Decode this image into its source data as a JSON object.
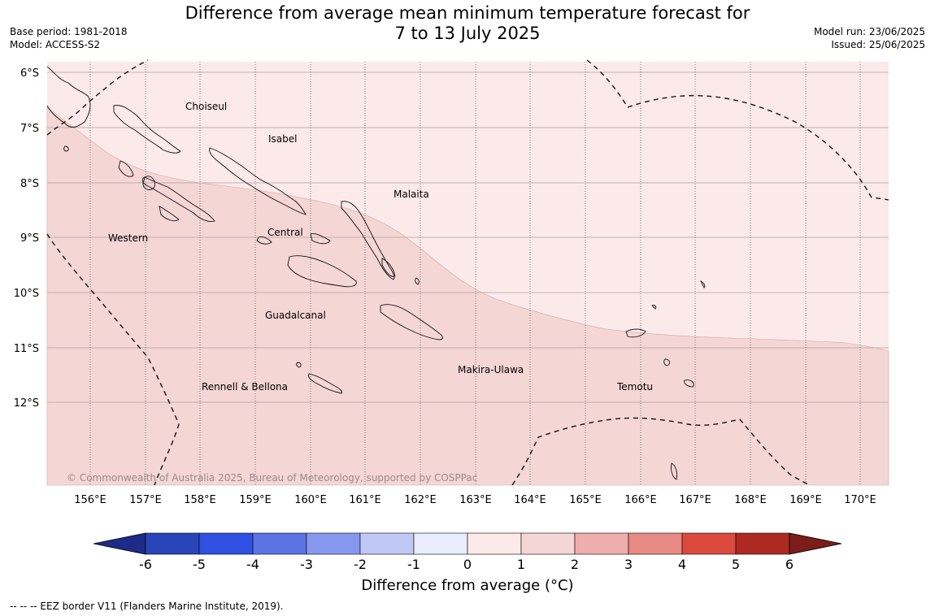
{
  "title": {
    "line1": "Difference from average mean minimum temperature forecast for",
    "line2": "7 to 13 July 2025"
  },
  "meta_left": {
    "base_period": "Base period: 1981-2018",
    "model": "Model: ACCESS-S2"
  },
  "meta_right": {
    "model_run": "Model run: 23/06/2025",
    "issued": "Issued: 25/06/2025"
  },
  "map": {
    "lat_labels": [
      "6°S",
      "7°S",
      "8°S",
      "9°S",
      "10°S",
      "11°S",
      "12°S"
    ],
    "lon_labels": [
      "156°E",
      "157°E",
      "158°E",
      "159°E",
      "160°E",
      "161°E",
      "162°E",
      "163°E",
      "164°E",
      "165°E",
      "166°E",
      "167°E",
      "168°E",
      "169°E",
      "170°E"
    ],
    "regions": [
      "Choiseul",
      "Isabel",
      "Malaita",
      "Western",
      "Central",
      "Guadalcanal",
      "Makira-Ulawa",
      "Rennell & Bellona",
      "Temotu"
    ],
    "copyright": "© Commonwealth of Australia 2025, Bureau of Meteorology, supported by COSPPac",
    "fill_colors": {
      "band_0_1": "#fbeae9",
      "band_1_2": "#f4d6d5"
    }
  },
  "colorbar": {
    "colors": [
      "#1d2b88",
      "#2a45b7",
      "#2f50e0",
      "#5a74e6",
      "#8698ee",
      "#c0c8f5",
      "#e9ecfc",
      "#fbeae9",
      "#f4d6d5",
      "#eeaeab",
      "#e88a84",
      "#dc4a3e",
      "#ad2a23",
      "#7c1d1a"
    ],
    "ticks": [
      "-6",
      "-5",
      "-4",
      "-3",
      "-2",
      "-1",
      "0",
      "1",
      "2",
      "3",
      "4",
      "5",
      "6"
    ],
    "label": "Difference from average (°C)"
  },
  "footnote": "-- -- -- EEZ border V11 (Flanders Marine Institute, 2019)."
}
